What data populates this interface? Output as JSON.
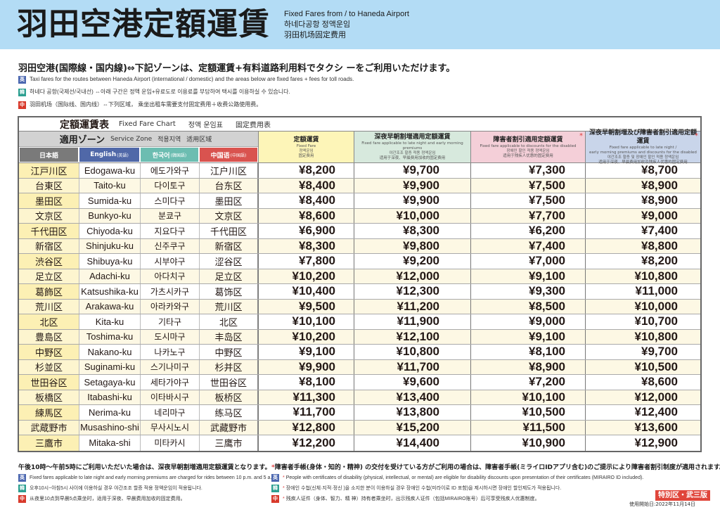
{
  "banner": {
    "title": "羽田空港定額運賃",
    "subtitle_en": "Fixed Fares from / to Haneda Airport",
    "subtitle_ko": "하네다공항 정액운임",
    "subtitle_zh": "羽田机场固定费用",
    "background": "#b3dcf5"
  },
  "intro": {
    "headline": "羽田空港(国際線・国内線)⇔下記ゾーンは、定額運賃+有料道路利用料でタクシ ーをご利用いただけます。",
    "lines": [
      {
        "badge": "英",
        "text": "Taxi fares for the routes between Haneda Airport (international / domestic) and the areas below are fixed fares + fees for toll roads."
      },
      {
        "badge": "韓",
        "text": "하네다 공항(국제선/국내선) ⇔아래 구간은 정액 운임+유료도로 이용료를 부담하여 택시를 이용하실 수 있습니다."
      },
      {
        "badge": "中",
        "text": "羽田机场（国际线、国内线）⇔下列区域， 乘坐出租车需要支付固定费用＋收费公路使用费。"
      }
    ]
  },
  "chart": {
    "title_jp": "定額運賃表",
    "title_en": "Fixed Fare Chart",
    "title_ko": "정액 운임표",
    "title_zh": "固定费用表",
    "zone_header": {
      "jp": "適用ゾーン",
      "en": "Service Zone",
      "ko": "적용지역",
      "zh": "适用区域"
    },
    "zone_columns": {
      "jp": "日本語",
      "en": "English",
      "en_sub": "(英語)",
      "ko": "한국어",
      "ko_sub": "(韓国語)",
      "zh": "中国语",
      "zh_sub": "(中国語)"
    },
    "fare_columns": [
      {
        "title": "定額運賃",
        "desc": [
          "Fixed Fare",
          "정액운임",
          "固定费用"
        ],
        "star": "",
        "color": "#fdf5b8"
      },
      {
        "title": "深夜早朝割増適用定額運賃",
        "desc": [
          "Fixed fare applicable to late night and early morning premiums",
          "야간조조 할증 적용 정액운임",
          "适用于深夜、早晨费用加收的固定费用"
        ],
        "star": "",
        "color": "#d7e9dd"
      },
      {
        "title": "障害者割引適用定額運賃",
        "desc": [
          "Fixed fare applicable to discounts for the disabled",
          "장애인 할인 적용 정액운임",
          "适用于残疾人优惠的固定费用"
        ],
        "star": "*",
        "color": "#f4cfd8"
      },
      {
        "title": "深夜早朝割増及び障害者割引適用定額運賃",
        "desc": [
          "Fixed fare applicable to late night /",
          "early morning premiums and discounts for the disabled",
          "야간조조 할증 및 장애인 할인 적용 정액운임",
          "适用于深夜、早晨费用加收及残疾人优惠的固定费用"
        ],
        "star": "*",
        "color": "#c9d5ea"
      }
    ],
    "rows": [
      {
        "jp": "江戸川区",
        "en": "Edogawa-ku",
        "ko": "에도가와구",
        "zh": "江户川区",
        "fare": "¥8,200",
        "night": "¥9,700",
        "disabled": "¥7,300",
        "night_disabled": "¥8,700"
      },
      {
        "jp": "台東区",
        "en": "Taito-ku",
        "ko": "다이토구",
        "zh": "台东区",
        "fare": "¥8,400",
        "night": "¥9,900",
        "disabled": "¥7,500",
        "night_disabled": "¥8,900"
      },
      {
        "jp": "墨田区",
        "en": "Sumida-ku",
        "ko": "스미다구",
        "zh": "墨田区",
        "fare": "¥8,400",
        "night": "¥9,900",
        "disabled": "¥7,500",
        "night_disabled": "¥8,900"
      },
      {
        "jp": "文京区",
        "en": "Bunkyo-ku",
        "ko": "분쿄구",
        "zh": "文京区",
        "fare": "¥8,600",
        "night": "¥10,000",
        "disabled": "¥7,700",
        "night_disabled": "¥9,000"
      },
      {
        "jp": "千代田区",
        "en": "Chiyoda-ku",
        "ko": "지요다구",
        "zh": "千代田区",
        "fare": "¥6,900",
        "night": "¥8,300",
        "disabled": "¥6,200",
        "night_disabled": "¥7,400"
      },
      {
        "jp": "新宿区",
        "en": "Shinjuku-ku",
        "ko": "신주쿠구",
        "zh": "新宿区",
        "fare": "¥8,300",
        "night": "¥9,800",
        "disabled": "¥7,400",
        "night_disabled": "¥8,800"
      },
      {
        "jp": "渋谷区",
        "en": "Shibuya-ku",
        "ko": "시부야구",
        "zh": "涩谷区",
        "fare": "¥7,800",
        "night": "¥9,200",
        "disabled": "¥7,000",
        "night_disabled": "¥8,200"
      },
      {
        "jp": "足立区",
        "en": "Adachi-ku",
        "ko": "아다치구",
        "zh": "足立区",
        "fare": "¥10,200",
        "night": "¥12,000",
        "disabled": "¥9,100",
        "night_disabled": "¥10,800"
      },
      {
        "jp": "葛飾区",
        "en": "Katsushika-ku",
        "ko": "가츠시카구",
        "zh": "葛饰区",
        "fare": "¥10,400",
        "night": "¥12,300",
        "disabled": "¥9,300",
        "night_disabled": "¥11,000"
      },
      {
        "jp": "荒川区",
        "en": "Arakawa-ku",
        "ko": "아라카와구",
        "zh": "荒川区",
        "fare": "¥9,500",
        "night": "¥11,200",
        "disabled": "¥8,500",
        "night_disabled": "¥10,000"
      },
      {
        "jp": "北区",
        "en": "Kita-ku",
        "ko": "기타구",
        "zh": "北区",
        "fare": "¥10,100",
        "night": "¥11,900",
        "disabled": "¥9,000",
        "night_disabled": "¥10,700"
      },
      {
        "jp": "豊島区",
        "en": "Toshima-ku",
        "ko": "도시마구",
        "zh": "丰岛区",
        "fare": "¥10,200",
        "night": "¥12,100",
        "disabled": "¥9,100",
        "night_disabled": "¥10,800"
      },
      {
        "jp": "中野区",
        "en": "Nakano-ku",
        "ko": "나카노구",
        "zh": "中野区",
        "fare": "¥9,100",
        "night": "¥10,800",
        "disabled": "¥8,100",
        "night_disabled": "¥9,700"
      },
      {
        "jp": "杉並区",
        "en": "Suginami-ku",
        "ko": "스기나미구",
        "zh": "杉并区",
        "fare": "¥9,900",
        "night": "¥11,700",
        "disabled": "¥8,900",
        "night_disabled": "¥10,500"
      },
      {
        "jp": "世田谷区",
        "en": "Setagaya-ku",
        "ko": "세타가야구",
        "zh": "世田谷区",
        "fare": "¥8,100",
        "night": "¥9,600",
        "disabled": "¥7,200",
        "night_disabled": "¥8,600"
      },
      {
        "jp": "板橋区",
        "en": "Itabashi-ku",
        "ko": "이타바시구",
        "zh": "板桥区",
        "fare": "¥11,300",
        "night": "¥13,400",
        "disabled": "¥10,100",
        "night_disabled": "¥12,000"
      },
      {
        "jp": "練馬区",
        "en": "Nerima-ku",
        "ko": "네리마구",
        "zh": "练马区",
        "fare": "¥11,700",
        "night": "¥13,800",
        "disabled": "¥10,500",
        "night_disabled": "¥12,400"
      },
      {
        "jp": "武蔵野市",
        "en": "Musashino-shi",
        "ko": "무사시노시",
        "zh": "武藏野市",
        "fare": "¥12,800",
        "night": "¥15,200",
        "disabled": "¥11,500",
        "night_disabled": "¥13,600"
      },
      {
        "jp": "三鷹市",
        "en": "Mitaka-shi",
        "ko": "미타카시",
        "zh": "三鹰市",
        "fare": "¥12,200",
        "night": "¥14,400",
        "disabled": "¥10,900",
        "night_disabled": "¥12,900"
      }
    ]
  },
  "notes": {
    "night": {
      "head": "午後10時〜午前5時にご利用いただいた場合は、深夜早朝割増適用定額運賃となります。",
      "en": "Fixed fares applicable to late night and early morning premiums are charged for rides between 10 p.m. and 5 a.m.",
      "ko": "오후10시~아침5시 사이에 이용하실 경우 야간조조 할증 적용 정액운임이 적용됩니다.",
      "zh": "从夜里10点到早晨5点乘坐时，适用于深夜、早晨费用加收的固定费用。"
    },
    "disabled": {
      "star": "*",
      "head": "障害者手帳(身体・知的・精神) の交付を受けている方がご利用の場合は、障害者手帳(ミライロIDアプリ含む)のご提示により障害者割引制度が適用されます。",
      "en": "People with certificates of  disability (physical, intellectual, or mental) are eligible for disability discounts upon presentation of their certificates (MIRAIRO ID included).",
      "ko": "장애인 수첩(신체·지적·정신 )을 소지한 분이 이용하실 경우 장애인 수첩(미라이로 ID 포함)을 제시하시면 장애인 할인제도가 적용됩니다.",
      "zh": "残疾人证件（身体、智力、精 神）持有者乘坐时，出示残疾人证件（包括MIRAIRO账号）后可享受残疾人优惠制度。"
    },
    "badges": {
      "en": "英",
      "ko": "韓",
      "zh": "中"
    }
  },
  "footer": {
    "edition": "特別区・武三版",
    "start_date": "使用開始日:2022年11月14日"
  }
}
